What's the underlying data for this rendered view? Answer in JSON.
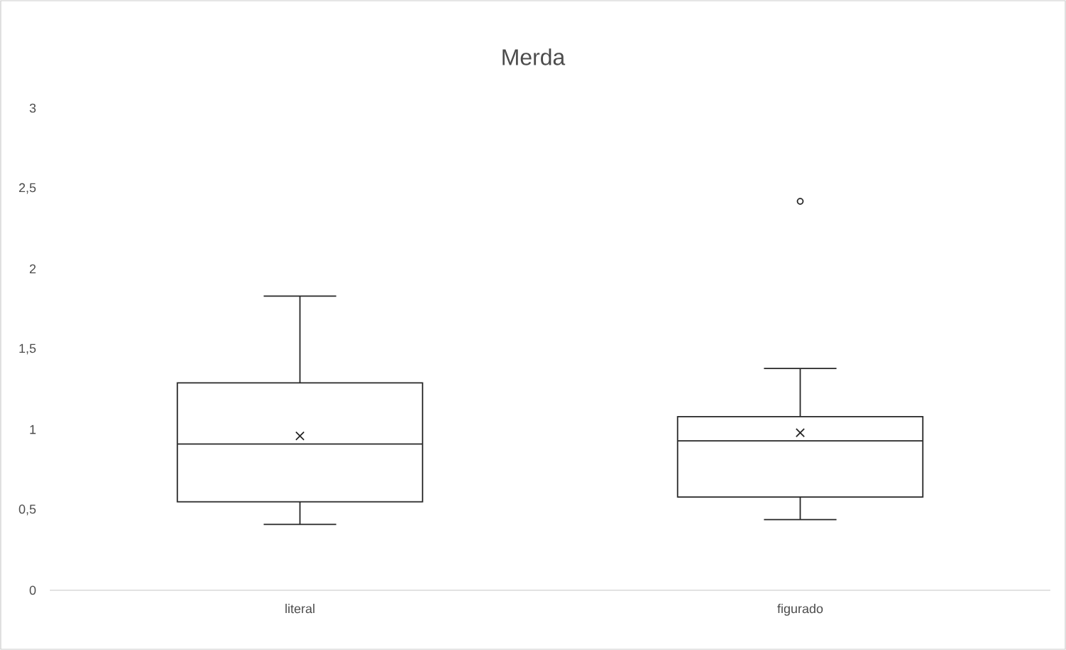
{
  "chart_data": {
    "type": "box",
    "title": "Merda",
    "categories": [
      "literal",
      "figurado"
    ],
    "boxes": [
      {
        "low": 0.41,
        "q1": 0.55,
        "median": 0.91,
        "q3": 1.29,
        "high": 1.83,
        "mean": 0.96
      },
      {
        "low": 0.44,
        "q1": 0.58,
        "median": 0.93,
        "q3": 1.08,
        "high": 1.38,
        "mean": 0.98,
        "outliers": [
          2.42
        ]
      }
    ],
    "ylim": [
      0,
      3
    ],
    "yticks": [
      0,
      {
        "value": 0.5,
        "label": "0,5"
      },
      1,
      {
        "value": 1.5,
        "label": "1,5"
      },
      2,
      {
        "value": 2.5,
        "label": "2,5"
      },
      3
    ],
    "grid": false
  }
}
